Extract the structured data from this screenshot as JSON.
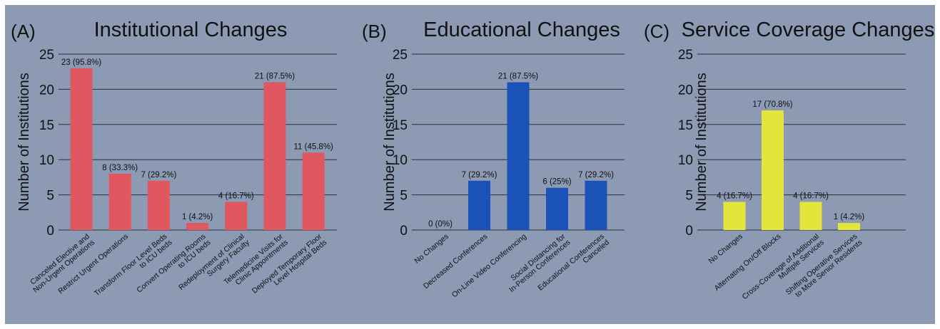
{
  "chart_data": [
    {
      "type": "bar",
      "panel": "(A)",
      "title": "Institutional Changes",
      "ylabel": "Number of Institutions",
      "ylim": [
        0,
        25
      ],
      "yticks": [
        0,
        5,
        10,
        15,
        20,
        25
      ],
      "color": "#e05760",
      "categories": [
        [
          "Canceled Elective and",
          "Non-Urgent Operations"
        ],
        [
          "Restrict Urgent Operations"
        ],
        [
          "Transform Floor Level Beds",
          "to ICU beds"
        ],
        [
          "Convert Operating Rooms",
          "to ICU beds"
        ],
        [
          "Redeployment of Clinical",
          "Surgery Faculty"
        ],
        [
          "Telemedicine Visits for",
          "Clinic Appointments"
        ],
        [
          "Deployed Temporary Floor",
          "Level Hospital Beds"
        ]
      ],
      "values": [
        23,
        8,
        7,
        1,
        4,
        21,
        11
      ],
      "data_labels": [
        "23 (95.8%)",
        "8 (33.3%)",
        "7 (29.2%)",
        "1 (4.2%)",
        "4 (16.7%)",
        "21 (87.5%)",
        "11 (45.8%)"
      ]
    },
    {
      "type": "bar",
      "panel": "(B)",
      "title": "Educational Changes",
      "ylabel": "Number of Institutions",
      "ylim": [
        0,
        25
      ],
      "yticks": [
        0,
        5,
        10,
        15,
        20,
        25
      ],
      "color": "#1a52b8",
      "categories": [
        [
          "No Changes"
        ],
        [
          "Decreased Conferences"
        ],
        [
          "On-Line Video Conferencing"
        ],
        [
          "Social Distancing for",
          "In-Person Conferences"
        ],
        [
          "Educational Conferences",
          "Canceled"
        ]
      ],
      "values": [
        0,
        7,
        21,
        6,
        7
      ],
      "data_labels": [
        "0 (0%)",
        "7 (29.2%)",
        "21 (87.5%)",
        "6 (25%)",
        "7 (29.2%)"
      ]
    },
    {
      "type": "bar",
      "panel": "(C)",
      "title": "Service Coverage Changes",
      "ylabel": "Number of Institutions",
      "ylim": [
        0,
        25
      ],
      "yticks": [
        0,
        5,
        10,
        15,
        20,
        25
      ],
      "color": "#e3e53a",
      "categories": [
        [
          "No Changes"
        ],
        [
          "Alternating On/Off Blocks"
        ],
        [
          "Cross-Coverage of Additional",
          "Multiple Services"
        ],
        [
          "Shifting Operative Services",
          "to More Senior Residents"
        ]
      ],
      "values": [
        4,
        17,
        4,
        1
      ],
      "data_labels": [
        "4 (16.7%)",
        "17 (70.8%)",
        "4 (16.7%)",
        "1 (4.2%)"
      ]
    }
  ]
}
